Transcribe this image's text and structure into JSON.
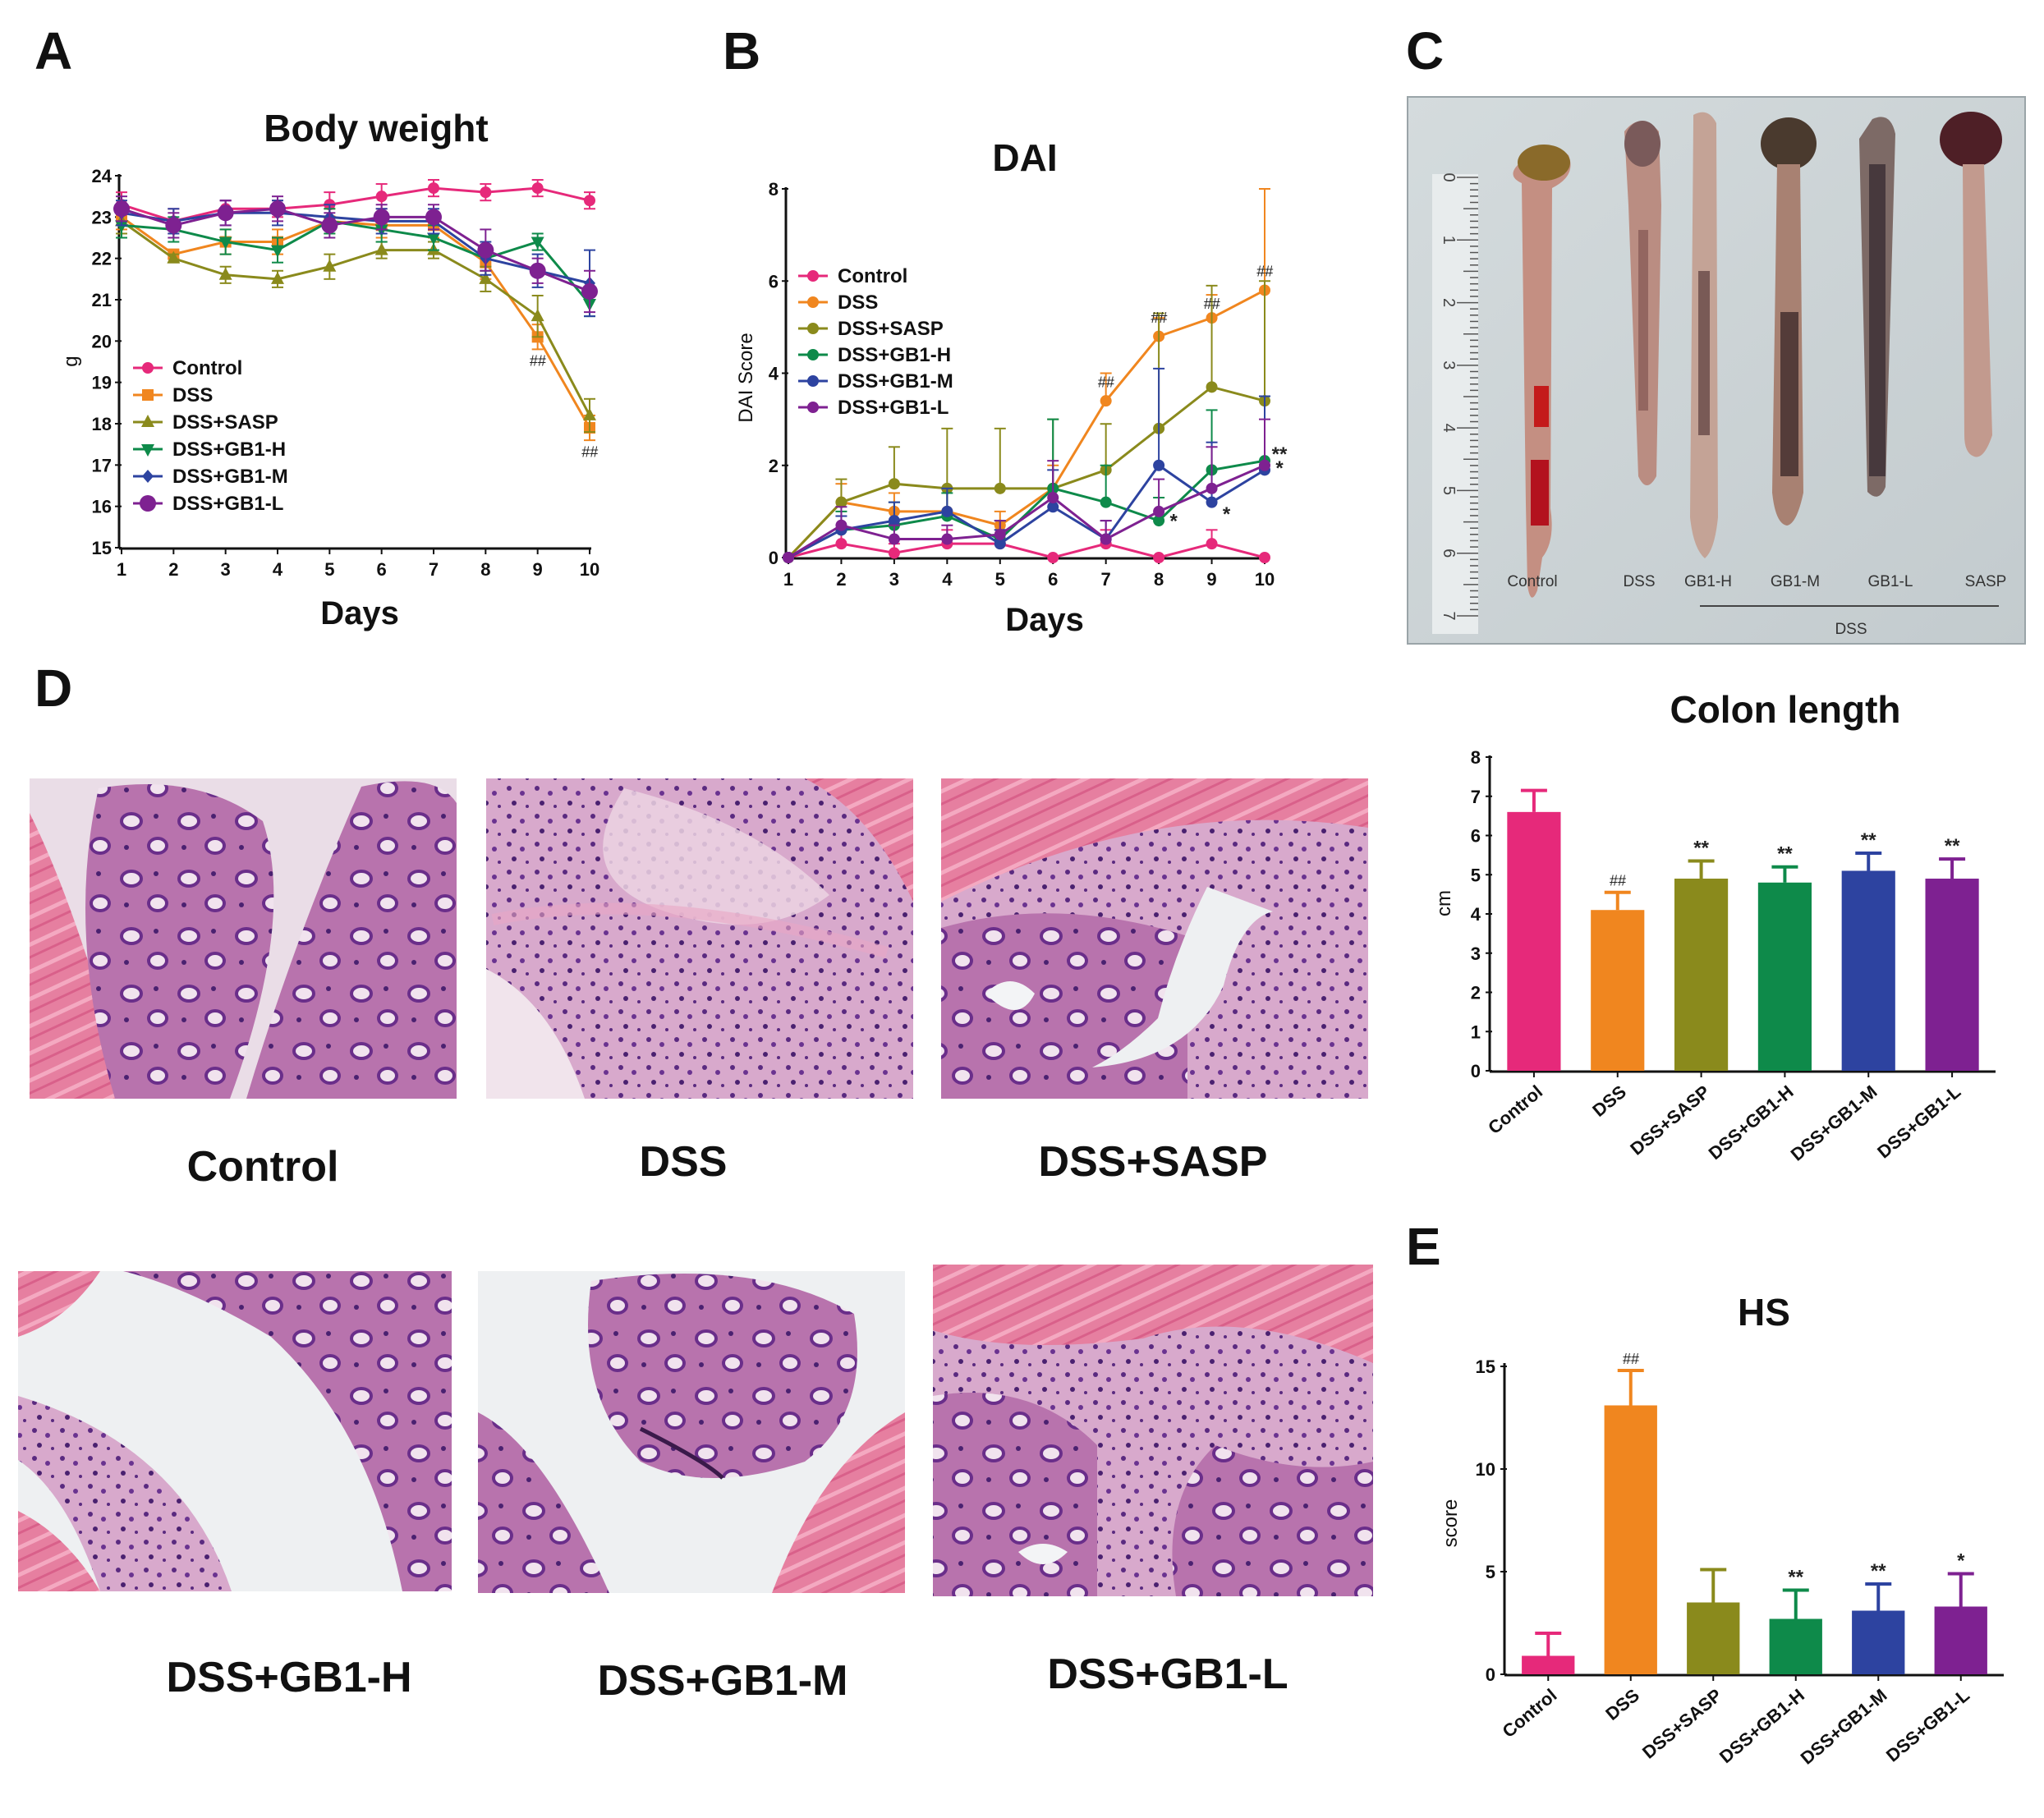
{
  "panels": {
    "a": "A",
    "b": "B",
    "c": "C",
    "d": "D",
    "e": "E"
  },
  "colors": {
    "Control": "#e6297a",
    "DSS": "#f0861f",
    "DSS+SASP": "#8a8a1c",
    "DSS+GB1-H": "#0e8a4a",
    "DSS+GB1-M": "#2d43a0",
    "DSS+GB1-L": "#7e2191"
  },
  "chart_data": [
    {
      "id": "body-weight",
      "type": "line",
      "title": "Body weight",
      "xlabel": "Days",
      "ylabel": "g",
      "x": [
        1,
        2,
        3,
        4,
        5,
        6,
        7,
        8,
        9,
        10
      ],
      "xlim": [
        1,
        10
      ],
      "ylim": [
        15,
        24
      ],
      "yticks": [
        "15",
        "16",
        "17",
        "18",
        "19",
        "20",
        "21",
        "22",
        "23",
        "24"
      ],
      "xticks": [
        "1",
        "2",
        "3",
        "4",
        "5",
        "6",
        "7",
        "8",
        "9",
        "10"
      ],
      "series": [
        {
          "name": "Control",
          "values": [
            23.3,
            22.9,
            23.2,
            23.2,
            23.3,
            23.5,
            23.7,
            23.6,
            23.7,
            23.4
          ],
          "err": [
            0.3,
            0.3,
            0.2,
            0.2,
            0.3,
            0.3,
            0.2,
            0.2,
            0.2,
            0.2
          ]
        },
        {
          "name": "DSS",
          "values": [
            23.0,
            22.1,
            22.4,
            22.4,
            22.9,
            22.8,
            22.8,
            21.9,
            20.1,
            17.9
          ],
          "err": [
            0.3,
            0.1,
            0.3,
            0.3,
            0.3,
            0.3,
            0.3,
            0.4,
            0.3,
            0.3
          ]
        },
        {
          "name": "DSS+SASP",
          "values": [
            22.9,
            22.0,
            21.6,
            21.5,
            21.8,
            22.2,
            22.2,
            21.5,
            20.6,
            18.2
          ],
          "err": [
            0.3,
            0.1,
            0.2,
            0.2,
            0.3,
            0.2,
            0.2,
            0.3,
            0.5,
            0.4
          ]
        },
        {
          "name": "DSS+GB1-H",
          "values": [
            22.8,
            22.7,
            22.4,
            22.2,
            22.9,
            22.7,
            22.5,
            22.0,
            22.4,
            20.9
          ],
          "err": [
            0.3,
            0.3,
            0.3,
            0.3,
            0.3,
            0.3,
            0.3,
            0.3,
            0.2,
            0.3
          ]
        },
        {
          "name": "DSS+GB1-M",
          "values": [
            23.1,
            22.9,
            23.1,
            23.1,
            23.0,
            22.9,
            22.9,
            22.0,
            21.7,
            21.4
          ],
          "err": [
            0.3,
            0.3,
            0.3,
            0.3,
            0.3,
            0.3,
            0.3,
            0.4,
            0.4,
            0.8
          ]
        },
        {
          "name": "DSS+GB1-L",
          "values": [
            23.2,
            22.8,
            23.1,
            23.2,
            22.8,
            23.0,
            23.0,
            22.2,
            21.7,
            21.2
          ],
          "err": [
            0.3,
            0.3,
            0.3,
            0.3,
            0.3,
            0.3,
            0.3,
            0.5,
            0.3,
            0.5
          ]
        }
      ],
      "annotations": [
        {
          "text": "##",
          "x": 9,
          "y": 19.4
        },
        {
          "text": "##",
          "x": 10,
          "y": 17.2
        }
      ],
      "legend": [
        "Control",
        "DSS",
        "DSS+SASP",
        "DSS+GB1-H",
        "DSS+GB1-M",
        "DSS+GB1-L"
      ]
    },
    {
      "id": "dai",
      "type": "line",
      "title": "DAI",
      "xlabel": "Days",
      "ylabel": "DAI Score",
      "x": [
        1,
        2,
        3,
        4,
        5,
        6,
        7,
        8,
        9,
        10
      ],
      "xlim": [
        1,
        10
      ],
      "ylim": [
        0,
        8
      ],
      "yticks": [
        "0",
        "2",
        "4",
        "6",
        "8"
      ],
      "xticks": [
        "1",
        "2",
        "3",
        "4",
        "5",
        "6",
        "7",
        "8",
        "9",
        "10"
      ],
      "series": [
        {
          "name": "Control",
          "values": [
            0,
            0.3,
            0.1,
            0.3,
            0.3,
            0,
            0.3,
            0,
            0.3,
            0
          ],
          "err": [
            0,
            0.3,
            0.2,
            0.3,
            0.3,
            0,
            0.3,
            0,
            0.3,
            0
          ]
        },
        {
          "name": "DSS",
          "values": [
            0,
            1.2,
            1.0,
            1.0,
            0.7,
            1.5,
            3.4,
            4.8,
            5.2,
            5.8
          ],
          "err": [
            0,
            0.4,
            0.4,
            0.5,
            0.3,
            0.5,
            0.6,
            0.4,
            0.5,
            2.2
          ]
        },
        {
          "name": "DSS+SASP",
          "values": [
            0,
            1.2,
            1.6,
            1.5,
            1.5,
            1.5,
            1.9,
            2.8,
            3.7,
            3.4
          ],
          "err": [
            0,
            0.5,
            0.8,
            1.3,
            1.3,
            1.5,
            1.0,
            2.5,
            2.2,
            2.6
          ]
        },
        {
          "name": "DSS+GB1-H",
          "values": [
            0,
            0.6,
            0.7,
            0.9,
            0.4,
            1.5,
            1.2,
            0.8,
            1.9,
            2.1
          ],
          "err": [
            0,
            0.4,
            0.5,
            0.5,
            0.4,
            1.5,
            0.8,
            0.5,
            1.3,
            1.4
          ]
        },
        {
          "name": "DSS+GB1-M",
          "values": [
            0,
            0.6,
            0.8,
            1.0,
            0.3,
            1.1,
            0.4,
            2.0,
            1.2,
            1.9
          ],
          "err": [
            0,
            0.3,
            0.4,
            0.5,
            0.3,
            0.8,
            0.4,
            2.1,
            1.3,
            1.6
          ]
        },
        {
          "name": "DSS+GB1-L",
          "values": [
            0,
            0.7,
            0.4,
            0.4,
            0.5,
            1.3,
            0.4,
            1.0,
            1.5,
            2.0
          ],
          "err": [
            0,
            0.4,
            0.3,
            0.3,
            0.3,
            0.8,
            0.4,
            0.7,
            0.9,
            1.0
          ]
        }
      ],
      "annotations": [
        {
          "text": "##",
          "x": 7,
          "y": 3.7
        },
        {
          "text": "##",
          "x": 8,
          "y": 5.1
        },
        {
          "text": "##",
          "x": 9,
          "y": 5.4
        },
        {
          "text": "##",
          "x": 10,
          "y": 6.1
        },
        {
          "text": "*",
          "x": 8,
          "y": 0.65
        },
        {
          "text": "*",
          "x": 9,
          "y": 0.8
        },
        {
          "text": "**",
          "x": 10,
          "y": 2.1
        },
        {
          "text": "*",
          "x": 10,
          "y": 1.8
        }
      ],
      "legend": [
        "Control",
        "DSS",
        "DSS+SASP",
        "DSS+GB1-H",
        "DSS+GB1-M",
        "DSS+GB1-L"
      ]
    },
    {
      "id": "colon-length",
      "type": "bar",
      "title": "Colon length",
      "xlabel": "",
      "ylabel": "cm",
      "ylim": [
        0,
        8
      ],
      "yticks": [
        "0",
        "1",
        "2",
        "3",
        "4",
        "5",
        "6",
        "7",
        "8"
      ],
      "categories": [
        "Control",
        "DSS",
        "DSS+SASP",
        "DSS+GB1-H",
        "DSS+GB1-M",
        "DSS+GB1-L"
      ],
      "values": [
        6.6,
        4.1,
        4.9,
        4.8,
        5.1,
        4.9
      ],
      "err": [
        0.55,
        0.45,
        0.45,
        0.4,
        0.45,
        0.5
      ],
      "marks": [
        "",
        "##",
        "**",
        "**",
        "**",
        "**"
      ]
    },
    {
      "id": "hs",
      "type": "bar",
      "title": "HS",
      "xlabel": "",
      "ylabel": "score",
      "ylim": [
        0,
        15
      ],
      "yticks": [
        "0",
        "5",
        "10",
        "15"
      ],
      "categories": [
        "Control",
        "DSS",
        "DSS+SASP",
        "DSS+GB1-H",
        "DSS+GB1-M",
        "DSS+GB1-L"
      ],
      "values": [
        0.9,
        13.1,
        3.5,
        2.7,
        3.1,
        3.3
      ],
      "err": [
        1.1,
        1.7,
        1.6,
        1.4,
        1.3,
        1.6
      ],
      "marks": [
        "",
        "##",
        "",
        "**",
        "**",
        "*"
      ]
    }
  ],
  "photo": {
    "samples": [
      "Control",
      "DSS",
      "GB1-H",
      "GB1-M",
      "GB1-L",
      "SASP"
    ],
    "group": "DSS",
    "ruler": [
      "0",
      "1",
      "2",
      "3",
      "4",
      "5",
      "6",
      "7"
    ]
  },
  "histology": {
    "labels": [
      "Control",
      "DSS",
      "DSS+SASP",
      "DSS+GB1-H",
      "DSS+GB1-M",
      "DSS+GB1-L"
    ]
  }
}
